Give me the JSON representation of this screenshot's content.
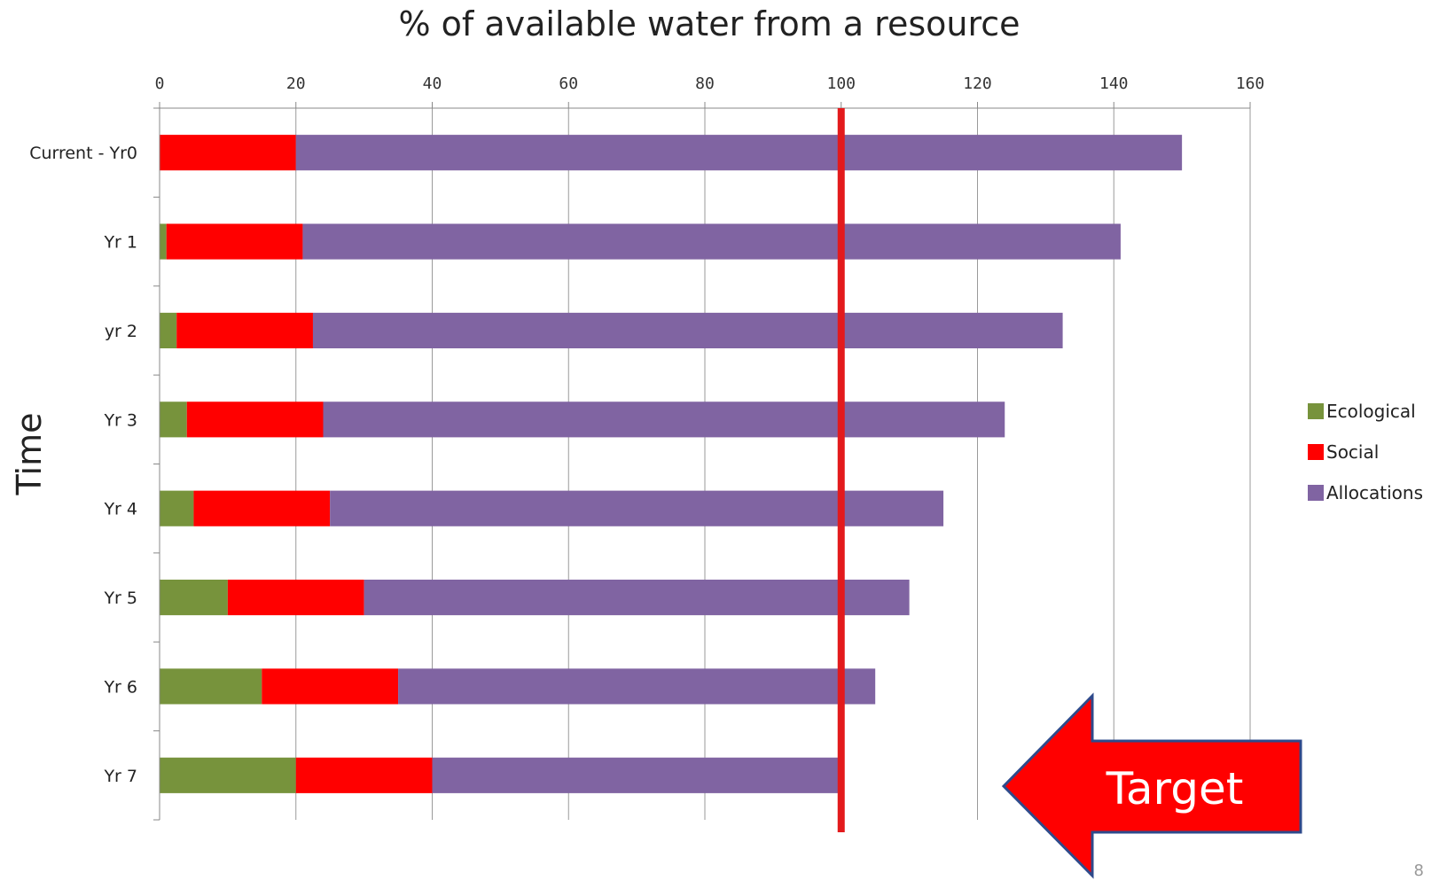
{
  "chart_data": {
    "type": "bar",
    "orientation": "horizontal",
    "stacked": true,
    "title": "% of available water from a resource",
    "xlabel": "",
    "ylabel": "Time",
    "xlim": [
      0,
      160
    ],
    "xticks": [
      "0",
      "20",
      "40",
      "60",
      "80",
      "100",
      "120",
      "140",
      "160"
    ],
    "categories": [
      "Current - Yr0",
      "Yr 1",
      "yr 2",
      "Yr 3",
      "Yr 4",
      "Yr 5",
      "Yr 6",
      "Yr 7"
    ],
    "series": [
      {
        "name": "Ecological",
        "color": "#77933C",
        "values": [
          0,
          1,
          2.5,
          4,
          5,
          10,
          15,
          20
        ]
      },
      {
        "name": "Social",
        "color": "#FF0000",
        "values": [
          20,
          20,
          20,
          20,
          20,
          20,
          20,
          20
        ]
      },
      {
        "name": "Allocations",
        "color": "#8064A2",
        "values": [
          130,
          120,
          110,
          100,
          90,
          80,
          70,
          60
        ]
      }
    ],
    "target_line": {
      "value": 100,
      "color": "#E31A1C"
    },
    "grid": true,
    "legend_position": "right",
    "annotation": {
      "text": "Target",
      "color": "#FF0000"
    }
  },
  "page_number": "8"
}
